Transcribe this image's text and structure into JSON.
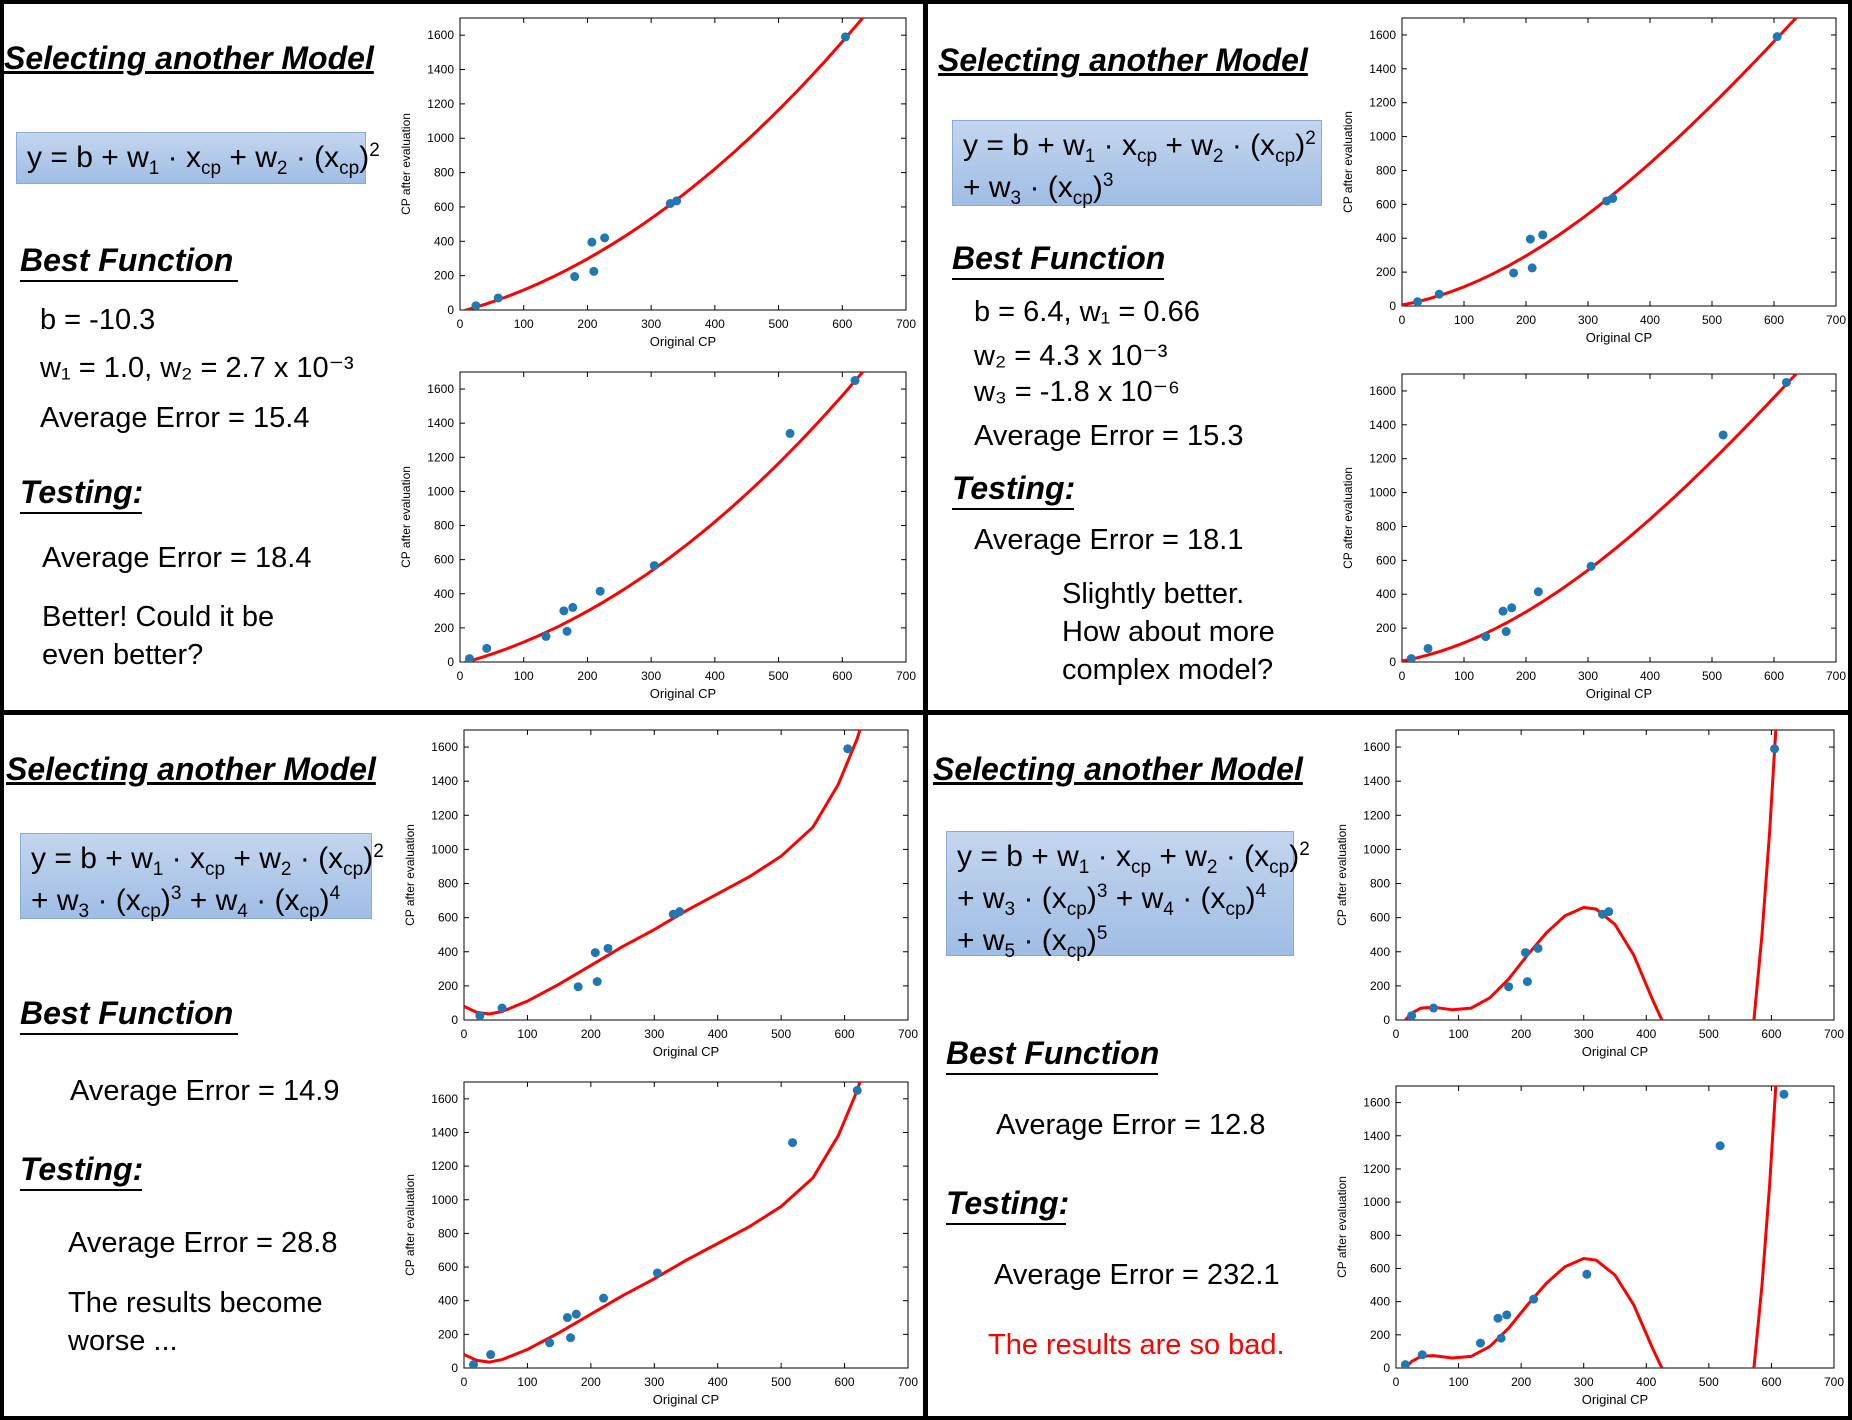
{
  "panels": [
    {
      "title": "Selecting another Model",
      "best_function": "Best Function",
      "params": [
        "b = -10.3",
        "w₁ = 1.0, w₂ = 2.7 x 10⁻³"
      ],
      "train_error": "Average Error = 15.4",
      "testing": "Testing:",
      "test_error": "Average Error = 18.4",
      "comment": [
        "Better! Could it be",
        "even better?"
      ]
    },
    {
      "title": "Selecting another Model",
      "best_function": "Best Function",
      "params": [
        "b = 6.4, w₁ = 0.66",
        "w₂ = 4.3 x 10⁻³",
        "w₃ = -1.8 x 10⁻⁶"
      ],
      "train_error": "Average Error = 15.3",
      "testing": "Testing:",
      "test_error": "Average Error = 18.1",
      "comment": [
        "Slightly better.",
        "How about more",
        "complex model?"
      ]
    },
    {
      "title": "Selecting another Model",
      "best_function": "Best Function",
      "params": [],
      "train_error": "Average Error = 14.9",
      "testing": "Testing:",
      "test_error": "Average Error = 28.8",
      "comment": [
        "The results become",
        "worse ..."
      ]
    },
    {
      "title": "Selecting another Model",
      "best_function": "Best Function",
      "params": [],
      "train_error": "Average Error = 12.8",
      "testing": "Testing:",
      "test_error": "Average Error = 232.1",
      "comment": [
        "The results are so bad."
      ]
    }
  ],
  "colors": {
    "curve": "#ff0000",
    "points": "#1f77b4",
    "formula_box": "#a9c5ea",
    "bad_comment": "#ff0000"
  },
  "chart_data": [
    {
      "type": "scatter",
      "model_degree": 2,
      "set": "training",
      "xlabel": "Original CP",
      "ylabel": "CP after evaluation",
      "xlim": [
        0,
        700
      ],
      "ylim": [
        0,
        1700
      ],
      "xticks": [
        0,
        100,
        200,
        300,
        400,
        500,
        600,
        700
      ],
      "yticks": [
        0,
        200,
        400,
        600,
        800,
        1000,
        1200,
        1400,
        1600
      ],
      "points": [
        [
          25,
          25
        ],
        [
          60,
          70
        ],
        [
          180,
          195
        ],
        [
          210,
          225
        ],
        [
          207,
          395
        ],
        [
          227,
          420
        ],
        [
          330,
          620
        ],
        [
          340,
          635
        ],
        [
          605,
          1590
        ]
      ],
      "curve_coefficients": [
        -10.3,
        1.0,
        0.0027
      ]
    },
    {
      "type": "scatter",
      "model_degree": 2,
      "set": "testing",
      "xlabel": "Original CP",
      "ylabel": "CP after evaluation",
      "xlim": [
        0,
        700
      ],
      "ylim": [
        0,
        1700
      ],
      "xticks": [
        0,
        100,
        200,
        300,
        400,
        500,
        600,
        700
      ],
      "yticks": [
        0,
        200,
        400,
        600,
        800,
        1000,
        1200,
        1400,
        1600
      ],
      "points": [
        [
          15,
          20
        ],
        [
          42,
          80
        ],
        [
          135,
          150
        ],
        [
          163,
          300
        ],
        [
          168,
          180
        ],
        [
          177,
          320
        ],
        [
          220,
          415
        ],
        [
          305,
          565
        ],
        [
          518,
          1340
        ],
        [
          620,
          1650
        ]
      ],
      "curve_coefficients": [
        -10.3,
        1.0,
        0.0027
      ]
    },
    {
      "type": "scatter",
      "model_degree": 3,
      "set": "training",
      "xlabel": "Original CP",
      "ylabel": "CP after evaluation",
      "xlim": [
        0,
        700
      ],
      "ylim": [
        0,
        1700
      ],
      "xticks": [
        0,
        100,
        200,
        300,
        400,
        500,
        600,
        700
      ],
      "yticks": [
        0,
        200,
        400,
        600,
        800,
        1000,
        1200,
        1400,
        1600
      ],
      "points": [
        [
          25,
          25
        ],
        [
          60,
          70
        ],
        [
          180,
          195
        ],
        [
          210,
          225
        ],
        [
          207,
          395
        ],
        [
          227,
          420
        ],
        [
          330,
          620
        ],
        [
          340,
          635
        ],
        [
          605,
          1590
        ]
      ],
      "curve_coefficients": [
        6.4,
        0.66,
        0.0043,
        -1.8e-06
      ]
    },
    {
      "type": "scatter",
      "model_degree": 3,
      "set": "testing",
      "xlabel": "Original CP",
      "ylabel": "CP after evaluation",
      "xlim": [
        0,
        700
      ],
      "ylim": [
        0,
        1700
      ],
      "xticks": [
        0,
        100,
        200,
        300,
        400,
        500,
        600,
        700
      ],
      "yticks": [
        0,
        200,
        400,
        600,
        800,
        1000,
        1200,
        1400,
        1600
      ],
      "points": [
        [
          15,
          20
        ],
        [
          42,
          80
        ],
        [
          135,
          150
        ],
        [
          163,
          300
        ],
        [
          168,
          180
        ],
        [
          177,
          320
        ],
        [
          220,
          415
        ],
        [
          305,
          565
        ],
        [
          518,
          1340
        ],
        [
          620,
          1650
        ]
      ],
      "curve_coefficients": [
        6.4,
        0.66,
        0.0043,
        -1.8e-06
      ]
    },
    {
      "type": "scatter",
      "model_degree": 4,
      "set": "training",
      "xlabel": "Original CP",
      "ylabel": "CP after evaluation",
      "xlim": [
        0,
        700
      ],
      "ylim": [
        0,
        1700
      ],
      "xticks": [
        0,
        100,
        200,
        300,
        400,
        500,
        600,
        700
      ],
      "yticks": [
        0,
        200,
        400,
        600,
        800,
        1000,
        1200,
        1400,
        1600
      ],
      "points": [
        [
          25,
          25
        ],
        [
          60,
          70
        ],
        [
          180,
          195
        ],
        [
          210,
          225
        ],
        [
          207,
          395
        ],
        [
          227,
          420
        ],
        [
          330,
          620
        ],
        [
          340,
          635
        ],
        [
          605,
          1590
        ]
      ],
      "curve_points": [
        [
          0,
          80
        ],
        [
          20,
          45
        ],
        [
          40,
          35
        ],
        [
          60,
          50
        ],
        [
          100,
          110
        ],
        [
          150,
          210
        ],
        [
          200,
          320
        ],
        [
          250,
          430
        ],
        [
          300,
          530
        ],
        [
          350,
          640
        ],
        [
          400,
          740
        ],
        [
          450,
          840
        ],
        [
          500,
          960
        ],
        [
          550,
          1130
        ],
        [
          590,
          1380
        ],
        [
          620,
          1650
        ],
        [
          628,
          1750
        ]
      ]
    },
    {
      "type": "scatter",
      "model_degree": 4,
      "set": "testing",
      "xlabel": "Original CP",
      "ylabel": "CP after evaluation",
      "xlim": [
        0,
        700
      ],
      "ylim": [
        0,
        1700
      ],
      "xticks": [
        0,
        100,
        200,
        300,
        400,
        500,
        600,
        700
      ],
      "yticks": [
        0,
        200,
        400,
        600,
        800,
        1000,
        1200,
        1400,
        1600
      ],
      "points": [
        [
          15,
          20
        ],
        [
          42,
          80
        ],
        [
          135,
          150
        ],
        [
          163,
          300
        ],
        [
          168,
          180
        ],
        [
          177,
          320
        ],
        [
          220,
          415
        ],
        [
          305,
          565
        ],
        [
          518,
          1340
        ],
        [
          620,
          1650
        ]
      ],
      "curve_points": [
        [
          0,
          80
        ],
        [
          20,
          45
        ],
        [
          40,
          35
        ],
        [
          60,
          50
        ],
        [
          100,
          110
        ],
        [
          150,
          210
        ],
        [
          200,
          320
        ],
        [
          250,
          430
        ],
        [
          300,
          530
        ],
        [
          350,
          640
        ],
        [
          400,
          740
        ],
        [
          450,
          840
        ],
        [
          500,
          960
        ],
        [
          550,
          1130
        ],
        [
          590,
          1380
        ],
        [
          620,
          1650
        ],
        [
          628,
          1750
        ]
      ]
    },
    {
      "type": "scatter",
      "model_degree": 5,
      "set": "training",
      "xlabel": "Original CP",
      "ylabel": "CP after evaluation",
      "xlim": [
        0,
        700
      ],
      "ylim": [
        0,
        1700
      ],
      "xticks": [
        0,
        100,
        200,
        300,
        400,
        500,
        600,
        700
      ],
      "yticks": [
        0,
        200,
        400,
        600,
        800,
        1000,
        1200,
        1400,
        1600
      ],
      "points": [
        [
          25,
          25
        ],
        [
          60,
          70
        ],
        [
          180,
          195
        ],
        [
          210,
          225
        ],
        [
          207,
          395
        ],
        [
          227,
          420
        ],
        [
          330,
          620
        ],
        [
          340,
          635
        ],
        [
          605,
          1590
        ]
      ],
      "curve_segments": [
        [
          [
            15,
            0
          ],
          [
            25,
            40
          ],
          [
            40,
            70
          ],
          [
            60,
            75
          ],
          [
            90,
            60
          ],
          [
            120,
            70
          ],
          [
            150,
            130
          ],
          [
            180,
            240
          ],
          [
            210,
            380
          ],
          [
            240,
            510
          ],
          [
            270,
            610
          ],
          [
            300,
            660
          ],
          [
            320,
            650
          ],
          [
            350,
            560
          ],
          [
            380,
            380
          ],
          [
            410,
            120
          ],
          [
            425,
            0
          ]
        ],
        [
          [
            572,
            0
          ],
          [
            585,
            500
          ],
          [
            597,
            1100
          ],
          [
            607,
            1700
          ]
        ]
      ]
    },
    {
      "type": "scatter",
      "model_degree": 5,
      "set": "testing",
      "xlabel": "Original CP",
      "ylabel": "CP after evaluation",
      "xlim": [
        0,
        700
      ],
      "ylim": [
        0,
        1700
      ],
      "xticks": [
        0,
        100,
        200,
        300,
        400,
        500,
        600,
        700
      ],
      "yticks": [
        0,
        200,
        400,
        600,
        800,
        1000,
        1200,
        1400,
        1600
      ],
      "points": [
        [
          15,
          20
        ],
        [
          42,
          80
        ],
        [
          135,
          150
        ],
        [
          163,
          300
        ],
        [
          168,
          180
        ],
        [
          177,
          320
        ],
        [
          220,
          415
        ],
        [
          305,
          565
        ],
        [
          518,
          1340
        ],
        [
          620,
          1650
        ]
      ],
      "curve_segments": [
        [
          [
            15,
            0
          ],
          [
            25,
            40
          ],
          [
            40,
            70
          ],
          [
            60,
            75
          ],
          [
            90,
            60
          ],
          [
            120,
            70
          ],
          [
            150,
            130
          ],
          [
            180,
            240
          ],
          [
            210,
            380
          ],
          [
            240,
            510
          ],
          [
            270,
            610
          ],
          [
            300,
            660
          ],
          [
            320,
            650
          ],
          [
            350,
            560
          ],
          [
            380,
            380
          ],
          [
            410,
            120
          ],
          [
            425,
            0
          ]
        ],
        [
          [
            572,
            0
          ],
          [
            585,
            500
          ],
          [
            597,
            1100
          ],
          [
            607,
            1700
          ]
        ]
      ]
    }
  ]
}
